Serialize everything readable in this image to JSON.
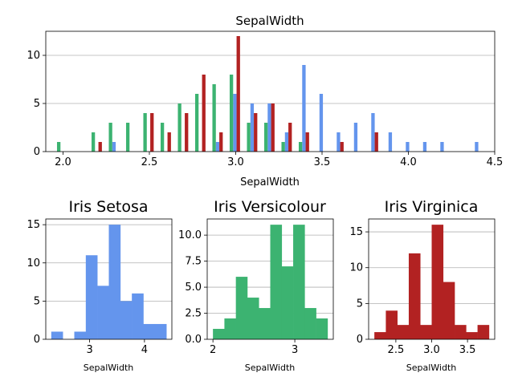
{
  "colors": {
    "setosa": "#6495ED",
    "versicolour": "#3CB371",
    "virginica": "#B22222"
  },
  "chart_data": [
    {
      "type": "bar",
      "title": "SepalWidth",
      "xlabel": "SepalWidth",
      "ylabel": "",
      "xlim": [
        1.9,
        4.5
      ],
      "ylim": [
        0,
        12.5
      ],
      "xticks": [
        2.0,
        2.5,
        3.0,
        3.5,
        4.0,
        4.5
      ],
      "yticks": [
        0,
        5,
        10
      ],
      "grid": "y",
      "categories": [
        2.0,
        2.2,
        2.3,
        2.4,
        2.5,
        2.6,
        2.7,
        2.8,
        2.9,
        3.0,
        3.1,
        3.2,
        3.3,
        3.4,
        3.5,
        3.6,
        3.7,
        3.8,
        3.9,
        4.0,
        4.1,
        4.2,
        4.4
      ],
      "series": [
        {
          "key": "setosa",
          "values": [
            0,
            0,
            1,
            0,
            0,
            0,
            0,
            0,
            1,
            6,
            5,
            5,
            2,
            9,
            6,
            2,
            3,
            4,
            2,
            1,
            1,
            1,
            1
          ]
        },
        {
          "key": "versicolour",
          "values": [
            1,
            2,
            3,
            3,
            4,
            3,
            5,
            6,
            7,
            8,
            3,
            3,
            1,
            1,
            0,
            0,
            0,
            0,
            0,
            0,
            0,
            0,
            0
          ]
        },
        {
          "key": "virginica",
          "values": [
            0,
            1,
            0,
            0,
            4,
            2,
            4,
            8,
            2,
            12,
            4,
            5,
            3,
            2,
            0,
            1,
            0,
            2,
            0,
            0,
            0,
            0,
            0
          ]
        }
      ]
    },
    {
      "type": "bar",
      "title": "Iris Setosa",
      "xlabel": "SepalWidth",
      "color_key": "setosa",
      "bin_edges": [
        2.3,
        2.51,
        2.72,
        2.93,
        3.14,
        3.35,
        3.56,
        3.77,
        3.98,
        4.19,
        4.4
      ],
      "values": [
        1,
        0,
        1,
        11,
        7,
        15,
        5,
        6,
        2,
        2
      ],
      "xlim": [
        2.2,
        4.5
      ],
      "ylim": [
        0,
        15.75
      ],
      "xticks": [
        3,
        4
      ],
      "yticks": [
        0,
        5,
        10,
        15
      ],
      "grid": "y"
    },
    {
      "type": "bar",
      "title": "Iris Versicolour",
      "xlabel": "SepalWidth",
      "color_key": "versicolour",
      "bin_edges": [
        2.0,
        2.14,
        2.28,
        2.42,
        2.56,
        2.7,
        2.84,
        2.98,
        3.12,
        3.26,
        3.4
      ],
      "values": [
        1,
        2,
        6,
        4,
        3,
        11,
        7,
        11,
        3,
        2
      ],
      "xlim": [
        1.93,
        3.47
      ],
      "ylim": [
        0,
        11.55
      ],
      "xticks": [
        2,
        3
      ],
      "yticks": [
        0.0,
        2.5,
        5.0,
        7.5,
        10.0
      ],
      "grid": "y"
    },
    {
      "type": "bar",
      "title": "Iris Virginica",
      "xlabel": "SepalWidth",
      "color_key": "virginica",
      "bin_edges": [
        2.2,
        2.36,
        2.52,
        2.68,
        2.84,
        3.0,
        3.16,
        3.32,
        3.48,
        3.64,
        3.8
      ],
      "values": [
        1,
        4,
        2,
        12,
        2,
        16,
        8,
        2,
        1,
        2
      ],
      "xlim": [
        2.12,
        3.88
      ],
      "ylim": [
        0,
        16.8
      ],
      "xticks": [
        2.5,
        3.0,
        3.5
      ],
      "yticks": [
        0,
        5,
        10,
        15
      ],
      "grid": "y"
    }
  ]
}
